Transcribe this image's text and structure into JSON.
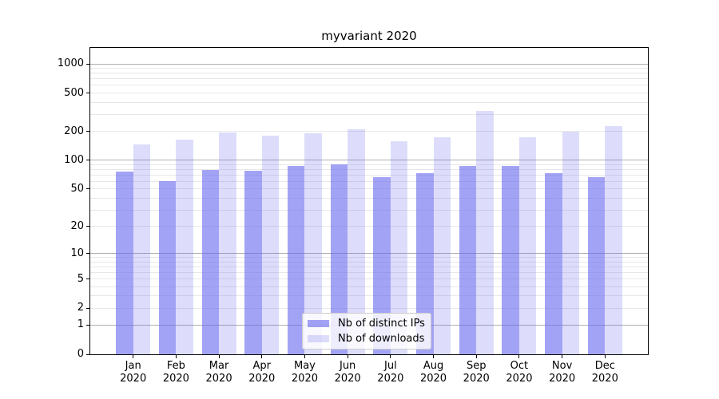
{
  "title": "myvariant 2020",
  "legend": {
    "items": [
      {
        "label": "Nb of distinct IPs",
        "color": "rgba(102,102,238,0.6)"
      },
      {
        "label": "Nb of downloads",
        "color": "rgba(102,102,238,0.22)"
      }
    ]
  },
  "y_axis": {
    "tick_labels": [
      "0",
      "1",
      "2",
      "5",
      "10",
      "20",
      "50",
      "100",
      "200",
      "500",
      "1000"
    ]
  },
  "x_axis": {
    "months": [
      "Jan",
      "Feb",
      "Mar",
      "Apr",
      "May",
      "Jun",
      "Jul",
      "Aug",
      "Sep",
      "Oct",
      "Nov",
      "Dec"
    ],
    "year": "2020"
  },
  "chart_data": {
    "type": "bar",
    "title": "myvariant 2020",
    "categories": [
      "Jan 2020",
      "Feb 2020",
      "Mar 2020",
      "Apr 2020",
      "May 2020",
      "Jun 2020",
      "Jul 2020",
      "Aug 2020",
      "Sep 2020",
      "Oct 2020",
      "Nov 2020",
      "Dec 2020"
    ],
    "series": [
      {
        "name": "Nb of distinct IPs",
        "color": "rgba(102,102,238,0.6)",
        "values": [
          76,
          60,
          79,
          77,
          88,
          90,
          67,
          74,
          87,
          88,
          73,
          67
        ]
      },
      {
        "name": "Nb of downloads",
        "color": "rgba(102,102,238,0.22)",
        "values": [
          145,
          163,
          195,
          181,
          192,
          212,
          157,
          174,
          327,
          175,
          197,
          228
        ]
      }
    ],
    "xlabel": "",
    "ylabel": "",
    "yscale": "symlog-log1p",
    "yticks": [
      0,
      1,
      2,
      5,
      10,
      20,
      50,
      100,
      200,
      500,
      1000
    ],
    "ylim": [
      0,
      1464
    ],
    "grid": "horizontal, major at powers of 10, faint minors at 2-9 multiples",
    "legend_position": "lower center"
  }
}
